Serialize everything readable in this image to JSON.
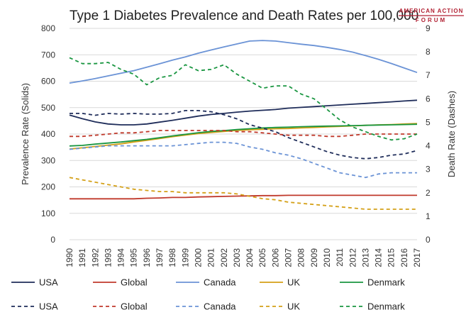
{
  "chart_data": {
    "type": "line",
    "title": "Type 1 Diabetes Prevalence and Death Rates per 100,000",
    "ylabel": "Prevalence Rate (Solids)",
    "y2label": "Death Rate (Dashes)",
    "xlabel": "",
    "ylim": [
      0,
      800
    ],
    "y2lim": [
      0,
      9
    ],
    "yticks": [
      0,
      100,
      200,
      300,
      400,
      500,
      600,
      700,
      800
    ],
    "y2ticks": [
      0,
      1,
      2,
      3,
      4,
      5,
      6,
      7,
      8,
      9
    ],
    "categories": [
      "1990",
      "1991",
      "1992",
      "1993",
      "1994",
      "1995",
      "1996",
      "1997",
      "1998",
      "1999",
      "2000",
      "2001",
      "2002",
      "2003",
      "2004",
      "2005",
      "2006",
      "2007",
      "2008",
      "2009",
      "2010",
      "2011",
      "2012",
      "2013",
      "2014",
      "2015",
      "2016",
      "2017"
    ],
    "series": [
      {
        "name": "USA",
        "axis": "left",
        "style": "solid",
        "color": "#1f2d5a",
        "values": [
          472,
          458,
          446,
          438,
          435,
          435,
          438,
          445,
          452,
          460,
          468,
          474,
          478,
          483,
          487,
          490,
          493,
          498,
          501,
          504,
          507,
          510,
          513,
          516,
          519,
          522,
          525,
          528
        ]
      },
      {
        "name": "Global",
        "axis": "left",
        "style": "solid",
        "color": "#c0392b",
        "values": [
          155,
          155,
          155,
          155,
          155,
          155,
          157,
          158,
          160,
          160,
          162,
          163,
          164,
          165,
          166,
          167,
          167,
          168,
          168,
          168,
          168,
          168,
          168,
          168,
          168,
          168,
          168,
          168
        ]
      },
      {
        "name": "Canada",
        "axis": "left",
        "style": "solid",
        "color": "#6b93d6",
        "values": [
          593,
          601,
          610,
          620,
          630,
          640,
          653,
          666,
          680,
          692,
          706,
          718,
          730,
          741,
          752,
          754,
          752,
          746,
          740,
          735,
          728,
          720,
          710,
          697,
          683,
          667,
          650,
          633
        ]
      },
      {
        "name": "UK",
        "axis": "left",
        "style": "solid",
        "color": "#d4a017",
        "values": [
          343,
          348,
          353,
          358,
          363,
          370,
          376,
          383,
          390,
          396,
          402,
          406,
          410,
          414,
          416,
          418,
          420,
          421,
          423,
          425,
          427,
          429,
          431,
          433,
          435,
          436,
          438,
          440
        ]
      },
      {
        "name": "Denmark",
        "axis": "left",
        "style": "solid",
        "color": "#1a9641",
        "values": [
          355,
          357,
          362,
          366,
          370,
          375,
          380,
          386,
          393,
          399,
          405,
          410,
          413,
          417,
          420,
          423,
          425,
          426,
          428,
          429,
          430,
          431,
          432,
          433,
          434,
          435,
          436,
          437
        ]
      },
      {
        "name": "USA",
        "axis": "right",
        "style": "dash",
        "color": "#1f2d5a",
        "values": [
          5.38,
          5.38,
          5.3,
          5.38,
          5.35,
          5.38,
          5.35,
          5.35,
          5.38,
          5.5,
          5.5,
          5.45,
          5.32,
          5.15,
          4.9,
          4.75,
          4.6,
          4.35,
          4.15,
          3.95,
          3.75,
          3.6,
          3.5,
          3.45,
          3.5,
          3.6,
          3.65,
          3.8
        ]
      },
      {
        "name": "Global",
        "axis": "right",
        "style": "dash",
        "color": "#c0392b",
        "values": [
          4.4,
          4.4,
          4.45,
          4.5,
          4.55,
          4.55,
          4.6,
          4.65,
          4.65,
          4.65,
          4.65,
          4.65,
          4.65,
          4.6,
          4.6,
          4.55,
          4.5,
          4.45,
          4.45,
          4.45,
          4.4,
          4.4,
          4.45,
          4.5,
          4.5,
          4.5,
          4.5,
          4.5
        ]
      },
      {
        "name": "Canada",
        "axis": "right",
        "style": "dash",
        "color": "#6b93d6",
        "values": [
          3.85,
          3.9,
          3.95,
          4.0,
          4.0,
          4.0,
          4.0,
          4.0,
          4.0,
          4.05,
          4.1,
          4.15,
          4.15,
          4.1,
          3.95,
          3.85,
          3.7,
          3.6,
          3.45,
          3.25,
          3.05,
          2.85,
          2.75,
          2.65,
          2.8,
          2.85,
          2.85,
          2.85
        ]
      },
      {
        "name": "UK",
        "axis": "right",
        "style": "dash",
        "color": "#d4a017",
        "values": [
          2.65,
          2.55,
          2.45,
          2.35,
          2.25,
          2.15,
          2.1,
          2.05,
          2.05,
          2.0,
          2.0,
          2.0,
          2.0,
          1.95,
          1.85,
          1.75,
          1.7,
          1.6,
          1.55,
          1.5,
          1.45,
          1.4,
          1.35,
          1.3,
          1.3,
          1.3,
          1.3,
          1.3
        ]
      },
      {
        "name": "Denmark",
        "axis": "right",
        "style": "dash",
        "color": "#1a9641",
        "values": [
          7.75,
          7.5,
          7.5,
          7.55,
          7.25,
          7.05,
          6.6,
          6.9,
          7.0,
          7.45,
          7.2,
          7.25,
          7.45,
          7.05,
          6.75,
          6.45,
          6.55,
          6.55,
          6.2,
          6.0,
          5.55,
          5.1,
          4.8,
          4.6,
          4.4,
          4.25,
          4.3,
          4.5
        ]
      }
    ]
  },
  "logo": {
    "line1": "AMERICAN ACTION",
    "line2": "FORUM"
  }
}
